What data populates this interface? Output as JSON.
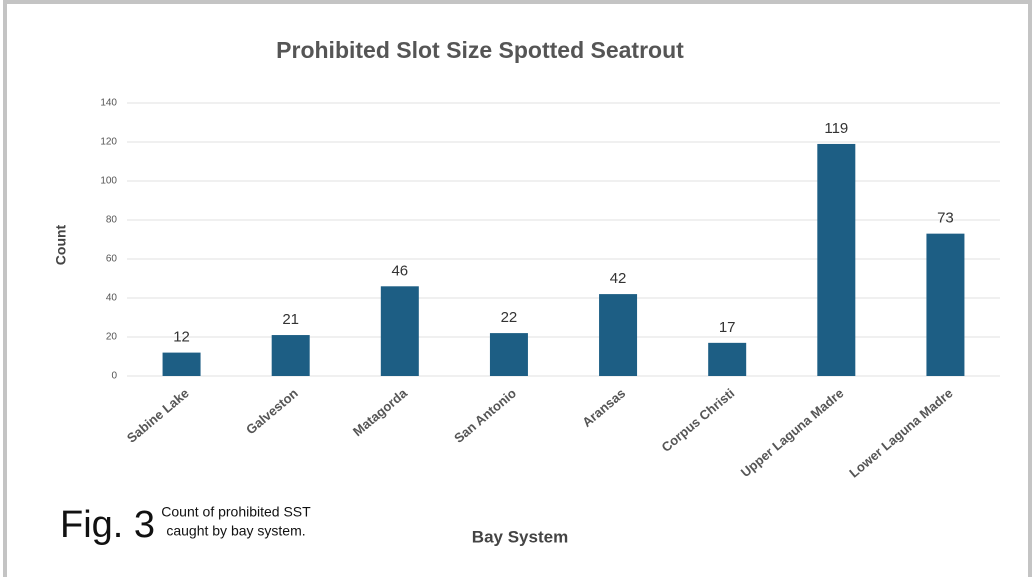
{
  "chart_data": {
    "type": "bar",
    "title": "Prohibited Slot Size Spotted Seatrout",
    "xlabel": "Bay System",
    "ylabel": "Count",
    "categories": [
      "Sabine Lake",
      "Galveston",
      "Matagorda",
      "San Antonio",
      "Aransas",
      "Corpus Christi",
      "Upper Laguna Madre",
      "Lower Laguna Madre"
    ],
    "values": [
      12,
      21,
      46,
      22,
      42,
      17,
      119,
      73
    ],
    "color": "#1d5e84",
    "ylim": [
      0,
      140
    ],
    "yticks": [
      0,
      20,
      40,
      60,
      80,
      100,
      120,
      140
    ],
    "grid": true
  },
  "figure": {
    "label": "Fig. 3",
    "caption": [
      "Count of prohibited SST",
      "caught by bay system."
    ]
  }
}
